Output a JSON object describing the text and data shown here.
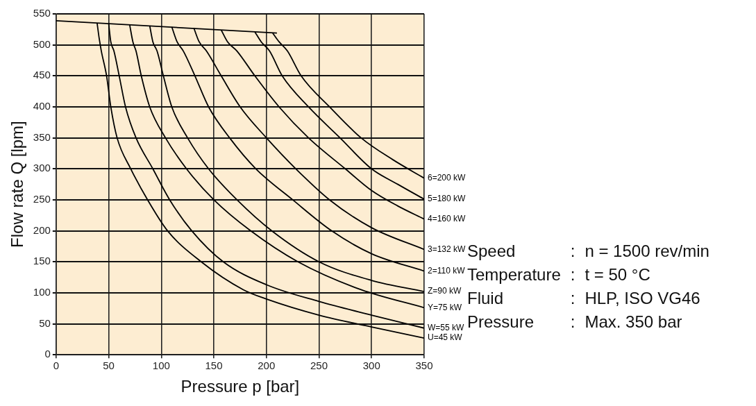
{
  "chart_data": {
    "type": "line",
    "xlabel": "Pressure p [bar]",
    "ylabel": "Flow rate Q [lpm]",
    "xlim": [
      0,
      350
    ],
    "ylim": [
      0,
      550
    ],
    "xticks": [
      0,
      50,
      100,
      150,
      200,
      250,
      300,
      350
    ],
    "yticks": [
      0,
      50,
      100,
      150,
      200,
      250,
      300,
      350,
      400,
      450,
      500,
      550
    ],
    "grid": true,
    "marker": "none",
    "line_style": "solid",
    "series": [
      {
        "color": "#000000",
        "x": [
          0,
          210
        ],
        "values": [
          539,
          519
        ]
      },
      {
        "name": "U=45 kW",
        "color": "#000000",
        "x": [
          39,
          41,
          43,
          48,
          52,
          58,
          71,
          87,
          106,
          138,
          178,
          200,
          250,
          300,
          350
        ],
        "values": [
          535,
          510,
          490,
          450,
          400,
          350,
          300,
          250,
          200,
          150,
          105,
          90,
          64,
          45,
          27
        ]
      },
      {
        "name": "W=55 kW",
        "color": "#000000",
        "x": [
          50,
          52,
          55,
          60,
          66,
          76,
          92,
          108,
          129,
          159,
          200,
          250,
          300,
          350
        ],
        "values": [
          534,
          505,
          490,
          450,
          400,
          350,
          300,
          250,
          200,
          150,
          113,
          86,
          64,
          43
        ]
      },
      {
        "name": "Y=75 kW",
        "color": "#000000",
        "x": [
          70,
          73,
          76,
          81,
          89,
          104,
          124,
          150,
          185,
          230,
          290,
          350
        ],
        "values": [
          532,
          505,
          490,
          450,
          400,
          350,
          300,
          250,
          200,
          150,
          105,
          76
        ]
      },
      {
        "name": "Z=90 kW",
        "color": "#000000",
        "x": [
          89,
          92,
          96,
          102,
          110,
          125,
          145,
          172,
          205,
          250,
          300,
          350
        ],
        "values": [
          531,
          505,
          490,
          450,
          400,
          350,
          300,
          250,
          200,
          150,
          120,
          102
        ]
      },
      {
        "name": "2=110 kW",
        "color": "#000000",
        "x": [
          110,
          115,
          121,
          132,
          145,
          165,
          190,
          225,
          262,
          300,
          350
        ],
        "values": [
          529,
          505,
          490,
          450,
          400,
          350,
          300,
          250,
          200,
          163,
          135
        ]
      },
      {
        "name": "3=132 kW",
        "color": "#000000",
        "x": [
          131,
          136,
          143,
          157,
          175,
          200,
          228,
          260,
          300,
          350
        ],
        "values": [
          527,
          505,
          490,
          450,
          400,
          350,
          300,
          250,
          205,
          170
        ]
      },
      {
        "name": "4=160 kW",
        "color": "#000000",
        "x": [
          157,
          163,
          172,
          189,
          212,
          240,
          275,
          300,
          325,
          350
        ],
        "values": [
          524,
          505,
          490,
          450,
          400,
          350,
          300,
          265,
          240,
          219
        ]
      },
      {
        "name": "5=180 kW",
        "color": "#000000",
        "x": [
          189,
          195,
          203,
          215,
          240,
          270,
          300,
          325,
          350
        ],
        "values": [
          521,
          505,
          490,
          450,
          400,
          350,
          300,
          275,
          251
        ]
      },
      {
        "name": "6=200 kW",
        "color": "#000000",
        "x": [
          206,
          212,
          220,
          233,
          260,
          290,
          320,
          350
        ],
        "values": [
          519,
          505,
          490,
          450,
          400,
          350,
          315,
          285
        ]
      }
    ],
    "annotations": [
      "Speed : n = 1500 rev/min",
      "Temperature : t = 50 °C",
      "Fluid : HLP, ISO VG46",
      "Pressure : Max. 350 bar"
    ]
  }
}
